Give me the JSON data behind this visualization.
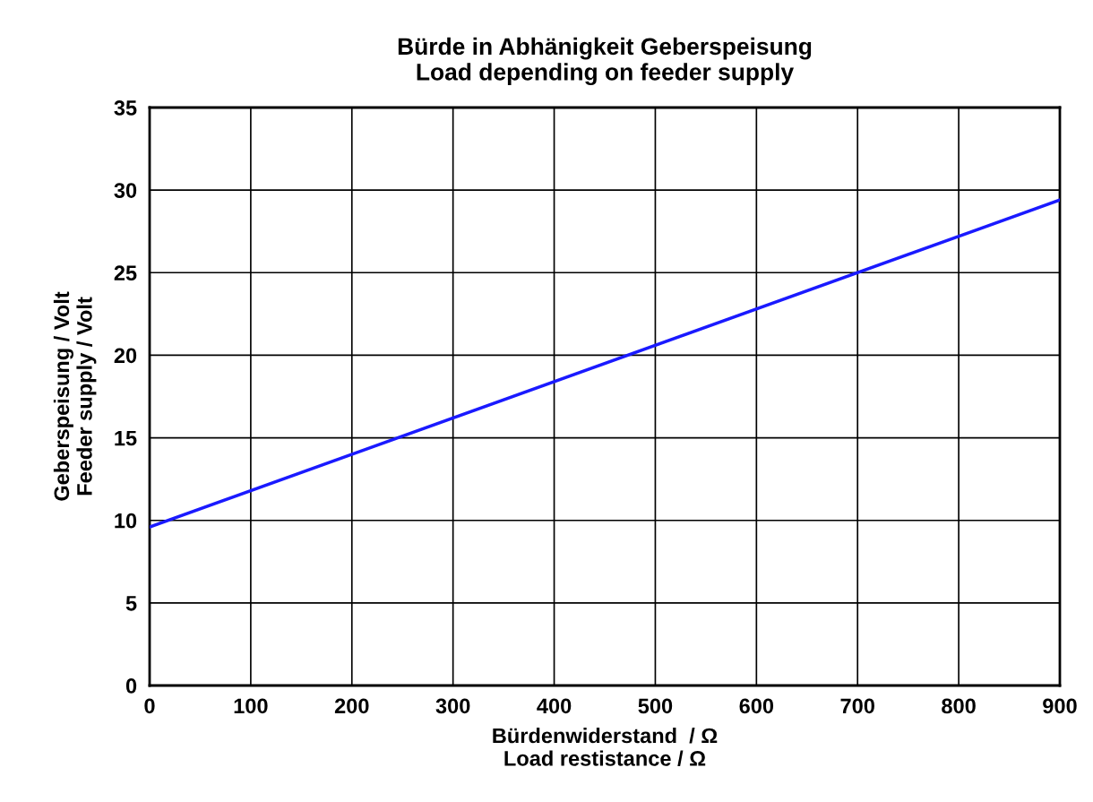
{
  "chart_data": {
    "type": "line",
    "title": "Bürde in Abhänigkeit Geberspeisung\nLoad depending on feeder supply",
    "xlabel": "Bürdenwiderstand  / Ω\nLoad restistance / Ω",
    "ylabel": "Geberspeisung / Volt\nFeeder supply / Volt",
    "x": [
      0,
      900
    ],
    "series": [
      {
        "color": "#1a1aff",
        "values": [
          9.6,
          29.4
        ]
      }
    ],
    "xlim": [
      0,
      900
    ],
    "xticks": [
      0,
      100,
      200,
      300,
      400,
      500,
      600,
      700,
      800,
      900
    ],
    "ylim": [
      0,
      35
    ],
    "yticks": [
      0,
      5,
      10,
      15,
      20,
      25,
      30,
      35
    ],
    "grid": true,
    "marker": "none",
    "line_style": "solid",
    "legend": false
  }
}
